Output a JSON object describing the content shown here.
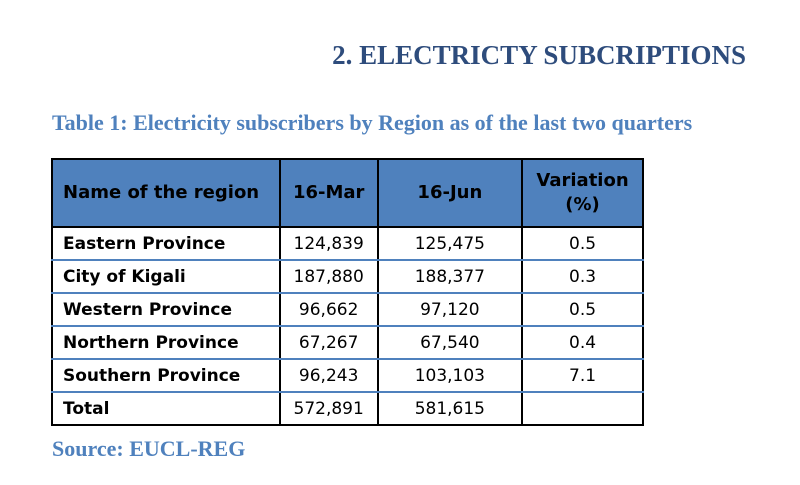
{
  "section_heading": "2.  ELECTRICTY SUBCRIPTIONS",
  "table_caption": "Table 1: Electricity subscribers by Region as of the last two quarters",
  "table": {
    "headers": [
      "Name of the region",
      "16-Mar",
      "16-Jun",
      "Variation (%)"
    ],
    "rows": [
      [
        "Eastern Province",
        "124,839",
        "125,475",
        "0.5"
      ],
      [
        "City of Kigali",
        "187,880",
        "188,377",
        "0.3"
      ],
      [
        "Western Province",
        "96,662",
        "97,120",
        "0.5"
      ],
      [
        "Northern Province",
        "67,267",
        "67,540",
        "0.4"
      ],
      [
        "Southern Province",
        "96,243",
        "103,103",
        "7.1"
      ],
      [
        "Total",
        "572,891",
        "581,615",
        ""
      ]
    ]
  },
  "source": "Source: EUCL-REG",
  "colors": {
    "heading": "#2e4c7c",
    "accent": "#4f81bd",
    "header_fill": "#4f81bd"
  }
}
